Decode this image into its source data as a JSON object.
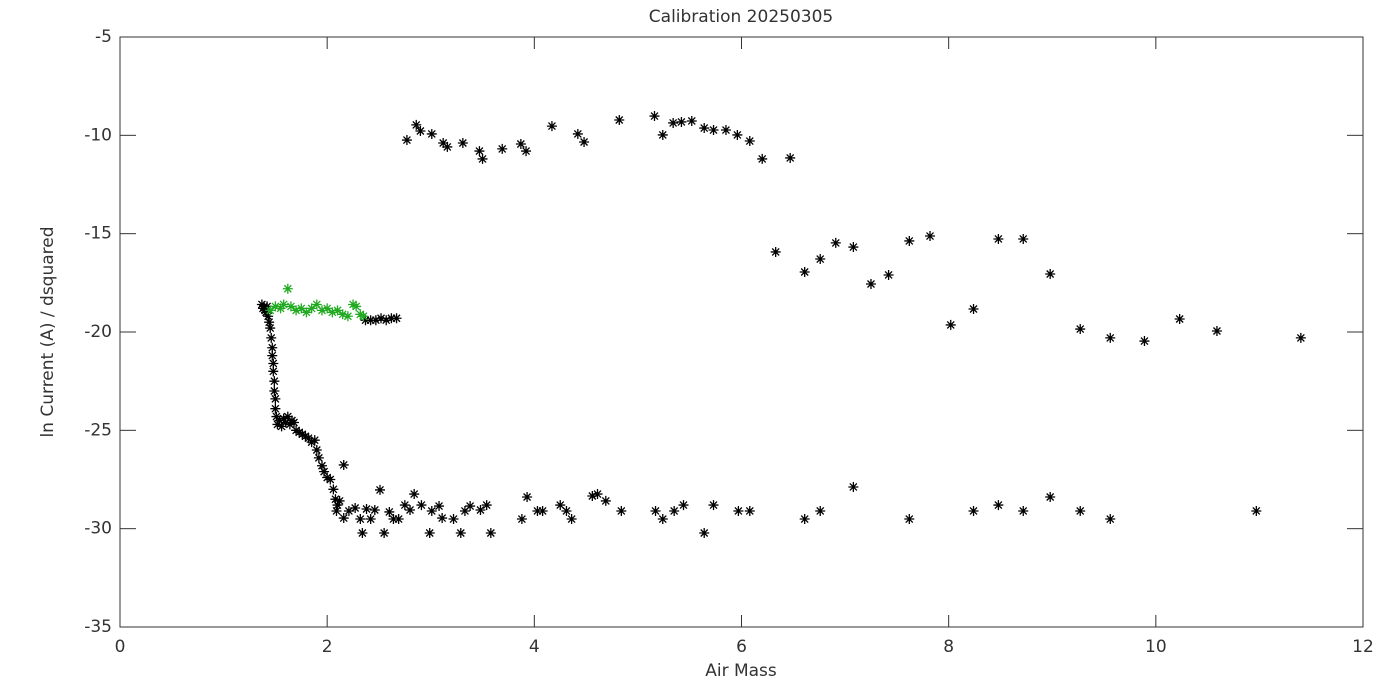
{
  "chart_data": {
    "type": "scatter",
    "title": "Calibration 20250305",
    "x_label": "Air Mass",
    "y_label": "ln Current (A) / dsquared",
    "xlim": [
      0,
      12
    ],
    "xticks": [
      0,
      2,
      4,
      6,
      8,
      10,
      12
    ],
    "ylim": [
      -35,
      -5
    ],
    "yticks": [
      -35,
      -30,
      -25,
      -20,
      -15,
      -10,
      -5
    ],
    "series": [
      {
        "color": "#000000",
        "x": [
          2.77,
          2.86,
          2.9,
          3.01,
          3.12,
          3.16,
          3.31,
          3.47,
          3.5,
          3.69,
          3.87,
          3.92,
          4.17,
          4.42,
          4.48,
          4.82,
          5.16,
          5.24,
          5.34,
          5.42,
          5.52,
          5.64,
          5.73,
          5.85,
          5.96,
          6.08,
          6.2,
          6.47,
          6.33,
          6.61,
          6.76,
          6.91,
          7.08,
          7.25,
          7.42,
          7.62,
          7.82,
          8.02,
          8.24,
          8.48,
          8.72,
          8.98,
          9.27,
          9.56,
          9.89,
          10.23,
          10.59,
          11.4,
          2.09,
          2.12,
          2.16,
          2.21,
          2.27,
          2.32,
          2.34,
          2.38,
          2.42,
          2.46,
          2.51,
          2.55,
          2.6,
          2.64,
          2.69,
          2.75,
          2.8,
          2.84,
          2.91,
          2.99,
          3.01,
          3.08,
          3.11,
          3.22,
          3.29,
          3.33,
          3.38,
          3.48,
          3.54,
          3.58,
          3.88,
          3.93,
          4.03,
          4.08,
          4.25,
          4.31,
          4.36,
          4.56,
          4.61,
          4.69,
          4.84,
          5.17,
          5.24,
          5.35,
          5.44,
          5.64,
          5.73,
          5.97,
          6.08,
          6.61,
          6.76,
          7.08,
          7.62,
          8.24,
          8.48,
          8.72,
          8.98,
          9.27,
          9.56,
          10.97,
          2.16,
          1.37,
          1.38,
          1.39,
          1.4,
          1.41,
          1.42,
          1.43,
          1.44,
          1.45,
          1.46,
          1.47,
          1.47,
          1.48,
          1.48,
          1.49,
          1.49,
          1.5,
          1.5,
          1.51,
          1.52,
          1.54,
          1.56,
          1.58,
          1.6,
          1.62,
          1.64,
          1.66,
          1.68,
          1.7,
          1.73,
          1.76,
          1.79,
          1.82,
          1.85,
          1.88,
          1.9,
          1.92,
          1.95,
          1.97,
          2.0,
          2.03,
          2.06,
          2.08,
          2.1,
          2.37,
          2.42,
          2.47,
          2.52,
          2.57,
          2.62,
          2.67
        ],
        "values": [
          -10.24,
          -9.47,
          -9.78,
          -9.93,
          -10.39,
          -10.59,
          -10.39,
          -10.8,
          -11.2,
          -10.69,
          -10.44,
          -10.8,
          -9.53,
          -9.93,
          -10.34,
          -9.22,
          -9.02,
          -9.98,
          -9.37,
          -9.32,
          -9.27,
          -9.63,
          -9.73,
          -9.73,
          -9.98,
          -10.29,
          -11.2,
          -11.15,
          -15.93,
          -16.95,
          -16.29,
          -15.47,
          -15.68,
          -17.56,
          -17.1,
          -15.37,
          -15.12,
          -19.64,
          -18.83,
          -15.27,
          -15.27,
          -17.05,
          -19.85,
          -20.3,
          -20.46,
          -19.34,
          -19.95,
          -20.3,
          -29.1,
          -28.59,
          -29.46,
          -29.1,
          -28.95,
          -29.51,
          -30.22,
          -29.0,
          -29.51,
          -29.05,
          -28.03,
          -30.22,
          -29.15,
          -29.51,
          -29.51,
          -28.8,
          -29.05,
          -28.24,
          -28.8,
          -30.22,
          -29.1,
          -28.85,
          -29.46,
          -29.51,
          -30.22,
          -29.1,
          -28.85,
          -29.05,
          -28.8,
          -30.22,
          -29.51,
          -28.39,
          -29.1,
          -29.1,
          -28.8,
          -29.1,
          -29.51,
          -28.34,
          -28.24,
          -28.59,
          -29.1,
          -29.1,
          -29.51,
          -29.1,
          -28.8,
          -30.22,
          -28.8,
          -29.1,
          -29.1,
          -29.51,
          -29.1,
          -27.88,
          -29.51,
          -29.1,
          -28.8,
          -29.1,
          -28.39,
          -29.1,
          -29.51,
          -29.1,
          -26.76,
          -18.6,
          -18.8,
          -18.7,
          -18.9,
          -19.0,
          -18.7,
          -19.2,
          -19.5,
          -19.8,
          -20.3,
          -20.8,
          -21.2,
          -21.6,
          -22.0,
          -22.5,
          -23.0,
          -23.4,
          -23.9,
          -24.3,
          -24.7,
          -24.5,
          -24.8,
          -24.4,
          -24.6,
          -24.3,
          -24.7,
          -24.5,
          -24.6,
          -25.0,
          -25.1,
          -25.2,
          -25.3,
          -25.4,
          -25.6,
          -25.5,
          -26.0,
          -26.4,
          -26.8,
          -27.1,
          -27.4,
          -27.5,
          -28.0,
          -28.5,
          -28.8,
          -19.4,
          -19.4,
          -19.4,
          -19.3,
          -19.4,
          -19.3,
          -19.3
        ]
      },
      {
        "color": "#22aa22",
        "x": [
          1.45,
          1.5,
          1.55,
          1.58,
          1.62,
          1.65,
          1.7,
          1.75,
          1.8,
          1.85,
          1.9,
          1.95,
          2.0,
          2.05,
          2.1,
          2.15,
          2.2,
          2.25,
          2.28,
          2.32,
          2.35
        ],
        "values": [
          -18.9,
          -18.7,
          -18.8,
          -18.6,
          -17.8,
          -18.7,
          -18.9,
          -18.8,
          -19.0,
          -18.8,
          -18.6,
          -18.9,
          -18.8,
          -19.0,
          -18.9,
          -19.1,
          -19.2,
          -18.6,
          -18.7,
          -19.1,
          -19.2
        ]
      }
    ]
  }
}
